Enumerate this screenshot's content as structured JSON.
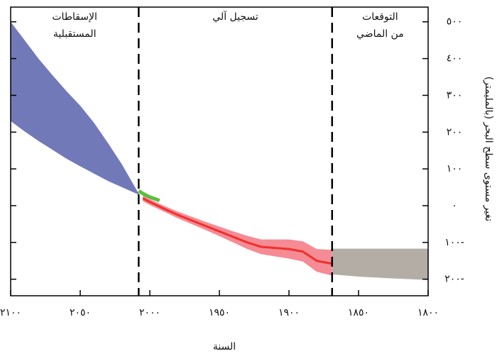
{
  "chart_data": {
    "type": "area",
    "x_label": "السنة",
    "y_label": "تغير مستوى سطح البحر (بالمليمتر)",
    "xlim": [
      2100,
      1800
    ],
    "ylim": [
      -245,
      540
    ],
    "xticks": [
      {
        "value": 2100,
        "label": "٢١٠٠"
      },
      {
        "value": 2050,
        "label": "٢٠٥٠"
      },
      {
        "value": 2000,
        "label": "٢٠٠٠"
      },
      {
        "value": 1950,
        "label": "١٩٥٠"
      },
      {
        "value": 1900,
        "label": "١٩٠٠"
      },
      {
        "value": 1850,
        "label": "١٨٥٠"
      },
      {
        "value": 1800,
        "label": "١٨٠٠"
      }
    ],
    "yticks": [
      {
        "value": 500,
        "label": "٥٠٠"
      },
      {
        "value": 400,
        "label": "٤٠٠"
      },
      {
        "value": 300,
        "label": "٣٠٠"
      },
      {
        "value": 200,
        "label": "٢٠٠"
      },
      {
        "value": 100,
        "label": "١٠٠"
      },
      {
        "value": 0,
        "label": "٠"
      },
      {
        "value": -100,
        "label": "١٠٠-"
      },
      {
        "value": -200,
        "label": "٢٠٠-"
      }
    ],
    "dividers": [
      2008,
      1869
    ],
    "annotations": [
      {
        "lines": [
          "الإسقاطات",
          "المستقبلية"
        ]
      },
      {
        "lines": [
          "تسجيل آلي"
        ]
      },
      {
        "lines": [
          "التوقعات",
          "من الماضي"
        ]
      }
    ],
    "bands": [
      {
        "color": "#7279b8",
        "x": [
          2100,
          2090,
          2080,
          2070,
          2060,
          2050,
          2040,
          2030,
          2020,
          2008
        ],
        "upper": [
          500,
          450,
          400,
          355,
          312,
          272,
          225,
          170,
          112,
          33
        ],
        "lower": [
          230,
          202,
          176,
          152,
          128,
          107,
          87,
          67,
          50,
          30
        ]
      },
      {
        "color": "#f58b95",
        "x": [
          1869,
          1880,
          1890,
          1900,
          1910,
          1920,
          1930,
          1940,
          1950,
          1960,
          1970,
          1980,
          1990,
          2000,
          2005
        ],
        "upper": [
          -120,
          -118,
          -97,
          -92,
          -92,
          -92,
          -82,
          -70,
          -57,
          -44,
          -30,
          -16,
          0,
          18,
          28
        ],
        "lower": [
          -190,
          -180,
          -152,
          -144,
          -138,
          -132,
          -118,
          -100,
          -83,
          -66,
          -50,
          -34,
          -16,
          2,
          12
        ]
      },
      {
        "color": "#b3ada6",
        "x": [
          1869,
          1850,
          1830,
          1800
        ],
        "upper": [
          -117,
          -117,
          -117,
          -117
        ],
        "lower": [
          -187,
          -193,
          -197,
          -202
        ]
      }
    ],
    "series": [
      {
        "color": "#f0302a",
        "x": [
          1869,
          1880,
          1890,
          1900,
          1910,
          1920,
          1930,
          1940,
          1950,
          1960,
          1970,
          1980,
          1990,
          2000,
          2005
        ],
        "values": [
          -158,
          -150,
          -125,
          -118,
          -115,
          -112,
          -100,
          -85,
          -70,
          -55,
          -40,
          -25,
          -8,
          10,
          20
        ]
      },
      {
        "color": "#5cbf3f",
        "x": [
          1993,
          1996,
          1999,
          2002,
          2005,
          2008
        ],
        "values": [
          14,
          18,
          22,
          27,
          33,
          40
        ]
      }
    ]
  }
}
